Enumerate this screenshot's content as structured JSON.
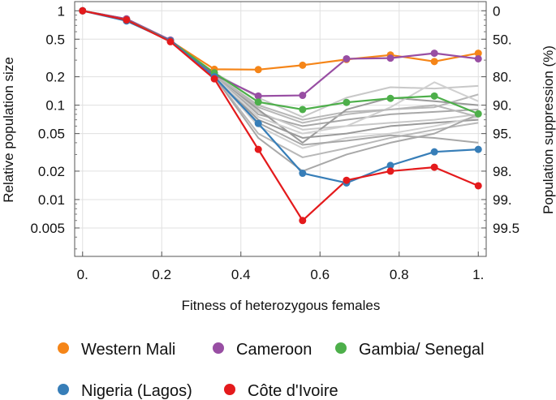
{
  "chart_data": {
    "type": "line",
    "xlabel": "Fitness of heterozygous females",
    "ylabel": "Relative population size",
    "y2label": "Population suppression (%)",
    "yscale": "log",
    "xlim": [
      -0.02,
      1.02
    ],
    "ylim": [
      0.0025,
      1.25
    ],
    "grid": true,
    "legend_position": "bottom",
    "x_ticks": [
      {
        "value": 0.0,
        "label": "0."
      },
      {
        "value": 0.2,
        "label": "0.2"
      },
      {
        "value": 0.4,
        "label": "0.4"
      },
      {
        "value": 0.6,
        "label": "0.6"
      },
      {
        "value": 0.8,
        "label": "0.8"
      },
      {
        "value": 1.0,
        "label": "1."
      }
    ],
    "y_ticks": [
      {
        "value": 1,
        "label": "1"
      },
      {
        "value": 0.5,
        "label": "0.5"
      },
      {
        "value": 0.2,
        "label": "0.2"
      },
      {
        "value": 0.1,
        "label": "0.1"
      },
      {
        "value": 0.05,
        "label": "0.05"
      },
      {
        "value": 0.02,
        "label": "0.02"
      },
      {
        "value": 0.01,
        "label": "0.01"
      },
      {
        "value": 0.005,
        "label": "0.005"
      }
    ],
    "y2_ticks": [
      {
        "value": 1,
        "label": "0"
      },
      {
        "value": 0.5,
        "label": "50."
      },
      {
        "value": 0.2,
        "label": "80."
      },
      {
        "value": 0.1,
        "label": "90."
      },
      {
        "value": 0.05,
        "label": "95."
      },
      {
        "value": 0.02,
        "label": "98."
      },
      {
        "value": 0.01,
        "label": "99."
      },
      {
        "value": 0.005,
        "label": "99.5"
      }
    ],
    "x": [
      0,
      0.111,
      0.222,
      0.333,
      0.444,
      0.556,
      0.667,
      0.778,
      0.889,
      1.0
    ],
    "series": [
      {
        "name": "Western Mali",
        "color": "#f58518",
        "values": [
          1.0,
          0.82,
          0.48,
          0.24,
          0.238,
          0.265,
          0.305,
          0.34,
          0.29,
          0.355
        ]
      },
      {
        "name": "Cameroon",
        "color": "#984ea3",
        "values": [
          1.0,
          0.82,
          0.49,
          0.21,
          0.125,
          0.127,
          0.31,
          0.315,
          0.355,
          0.31
        ]
      },
      {
        "name": "Gambia/ Senegal",
        "color": "#4daf4a",
        "values": [
          1.0,
          0.8,
          0.48,
          0.22,
          0.108,
          0.09,
          0.107,
          0.118,
          0.125,
          0.081
        ]
      },
      {
        "name": "Nigeria (Lagos)",
        "color": "#377eb8",
        "values": [
          1.0,
          0.78,
          0.48,
          0.2,
          0.064,
          0.019,
          0.015,
          0.023,
          0.032,
          0.034
        ]
      },
      {
        "name": "Côte d'Ivoire",
        "color": "#e41a1c",
        "values": [
          1.0,
          0.8,
          0.47,
          0.19,
          0.034,
          0.006,
          0.016,
          0.02,
          0.022,
          0.014
        ]
      }
    ],
    "background_series": [
      {
        "values": [
          0.21,
          0.1,
          0.07,
          0.085,
          0.09,
          0.095,
          0.13
        ]
      },
      {
        "values": [
          0.21,
          0.08,
          0.06,
          0.07,
          0.08,
          0.085,
          0.09
        ]
      },
      {
        "values": [
          0.21,
          0.085,
          0.055,
          0.06,
          0.065,
          0.07,
          0.08
        ]
      },
      {
        "values": [
          0.2,
          0.07,
          0.045,
          0.05,
          0.06,
          0.065,
          0.07
        ]
      },
      {
        "values": [
          0.2,
          0.06,
          0.035,
          0.045,
          0.05,
          0.06,
          0.075
        ]
      },
      {
        "values": [
          0.2,
          0.05,
          0.028,
          0.035,
          0.045,
          0.055,
          0.065
        ]
      },
      {
        "values": [
          0.2,
          0.045,
          0.02,
          0.03,
          0.04,
          0.05,
          0.08
        ]
      },
      {
        "values": [
          0.22,
          0.12,
          0.075,
          0.12,
          0.155,
          0.15,
          0.16
        ]
      },
      {
        "values": [
          0.21,
          0.09,
          0.04,
          0.09,
          0.12,
          0.11,
          0.1
        ]
      },
      {
        "values": [
          0.2,
          0.075,
          0.05,
          0.06,
          0.095,
          0.175,
          0.11
        ]
      },
      {
        "values": [
          0.21,
          0.095,
          0.065,
          0.08,
          0.09,
          0.1,
          0.075
        ]
      },
      {
        "values": [
          0.2,
          0.065,
          0.038,
          0.042,
          0.048,
          0.045,
          0.04
        ]
      }
    ]
  },
  "legend": [
    {
      "label": "Western Mali",
      "color": "#f58518"
    },
    {
      "label": "Cameroon",
      "color": "#984ea3"
    },
    {
      "label": "Gambia/ Senegal",
      "color": "#4daf4a"
    },
    {
      "label": "Nigeria (Lagos)",
      "color": "#377eb8"
    },
    {
      "label": "Côte d'Ivoire",
      "color": "#e41a1c"
    }
  ]
}
